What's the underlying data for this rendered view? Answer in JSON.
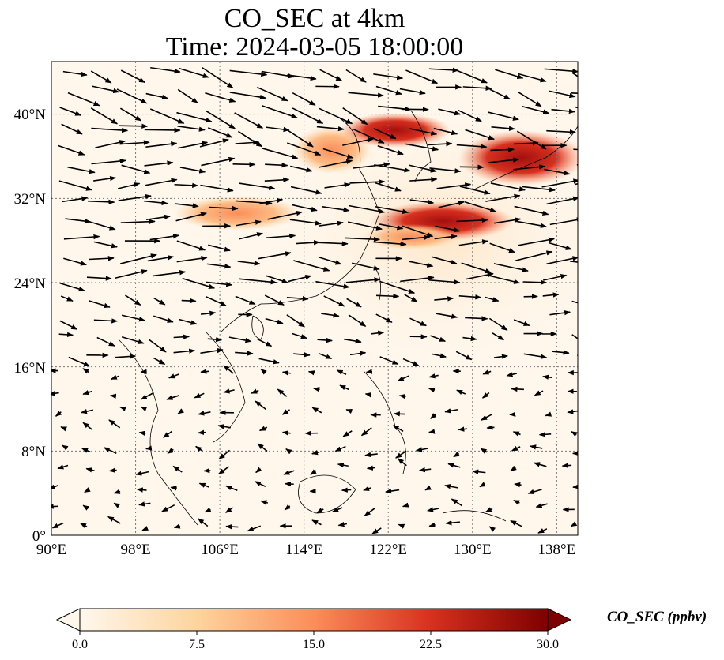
{
  "title": {
    "line1": "CO_SEC at 4km",
    "line2": "Time: 2024-03-05 18:00:00"
  },
  "map": {
    "extent": {
      "lon_min": 90,
      "lon_max": 140,
      "lat_min": 0,
      "lat_max": 45
    },
    "x_ticks": [
      "90°E",
      "98°E",
      "106°E",
      "114°E",
      "122°E",
      "130°E",
      "138°E"
    ],
    "y_ticks": [
      "0°",
      "8°N",
      "16°N",
      "24°N",
      "32°N",
      "40°N"
    ],
    "gridlines": true,
    "field_description": "CO secondary concentration with wind vectors"
  },
  "colorbar": {
    "label": "CO_SEC (ppbv)",
    "ticks": [
      "0.0",
      "7.5",
      "15.0",
      "22.5",
      "30.0"
    ],
    "range": [
      0,
      30
    ],
    "extend": "both",
    "colormap": "OrRd",
    "colors": [
      "#fff7ec",
      "#fdd49e",
      "#fc8d59",
      "#d7301f",
      "#7f0000"
    ]
  }
}
